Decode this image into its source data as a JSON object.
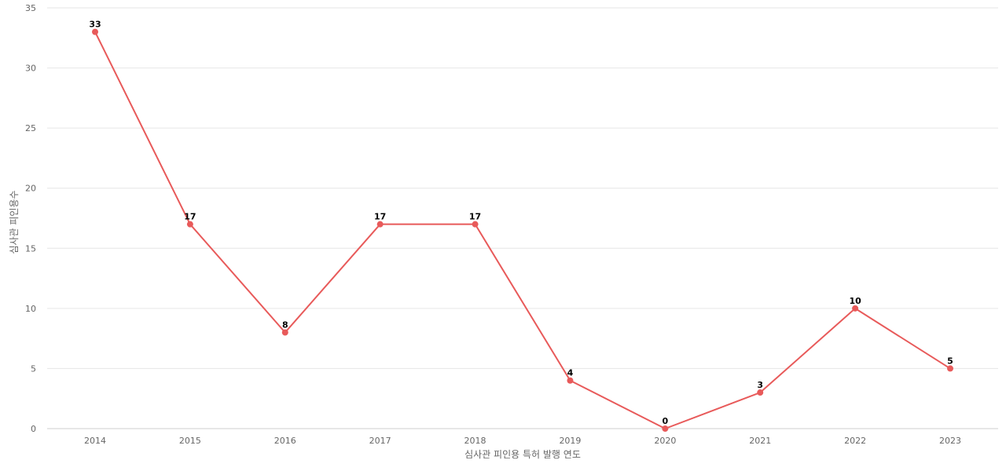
{
  "chart_data": {
    "type": "line",
    "title": "",
    "xlabel": "심사관 피인용 특허 발행 연도",
    "ylabel": "심사관 피인용수",
    "categories": [
      "2014",
      "2015",
      "2016",
      "2017",
      "2018",
      "2019",
      "2020",
      "2021",
      "2022",
      "2023"
    ],
    "series": [
      {
        "values": [
          33,
          17,
          8,
          17,
          17,
          4,
          0,
          3,
          10,
          5
        ],
        "color": "#e85a5a"
      }
    ],
    "ylim": [
      0,
      35
    ],
    "yticks": [
      0,
      5,
      10,
      15,
      20,
      25,
      30,
      35
    ],
    "grid": true,
    "data_labels": true,
    "legend": "none"
  }
}
